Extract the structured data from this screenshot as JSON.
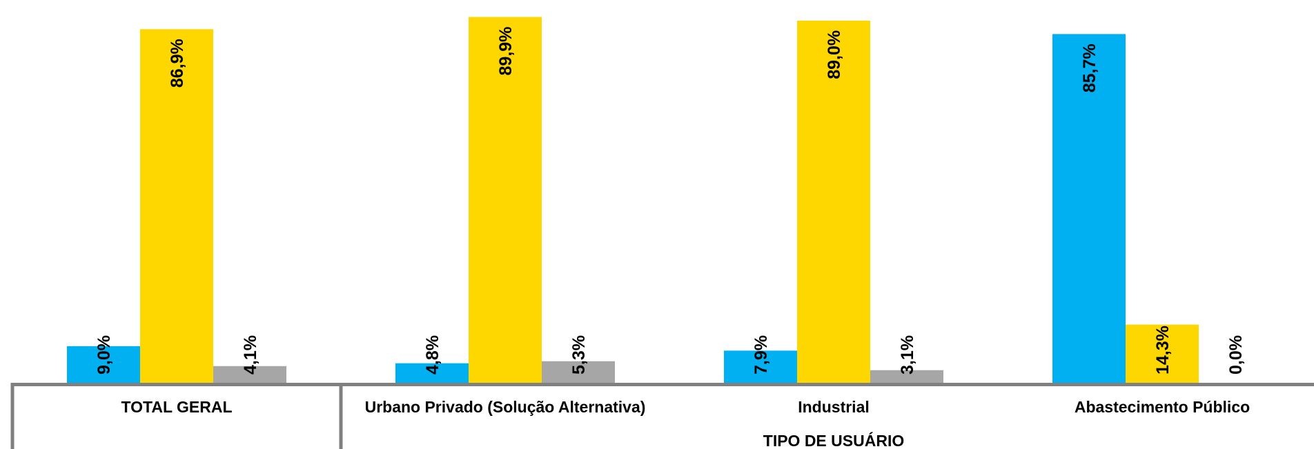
{
  "chart_data": {
    "type": "bar",
    "xlabel": "TIPO DE USUÁRIO",
    "categories": [
      "TOTAL GERAL",
      "Urbano Privado (Solução Alternativa)",
      "Industrial",
      "Abastecimento Público"
    ],
    "series": [
      {
        "color": "#00B0F0",
        "values": [
          9.0,
          4.8,
          7.9,
          85.7
        ]
      },
      {
        "color": "#FFD700",
        "values": [
          86.9,
          89.9,
          89.0,
          14.3
        ]
      },
      {
        "color": "#A6A6A6",
        "values": [
          4.1,
          5.3,
          3.1,
          0.0
        ]
      }
    ],
    "data_labels": [
      [
        "9,0%",
        "4,8%",
        "7,9%",
        "85,7%"
      ],
      [
        "86,9%",
        "89,9%",
        "89,0%",
        "14,3%"
      ],
      [
        "4,1%",
        "5,3%",
        "3,1%",
        "0,0%"
      ]
    ],
    "ylim": [
      0,
      90
    ],
    "grid": false,
    "legend": "none"
  }
}
